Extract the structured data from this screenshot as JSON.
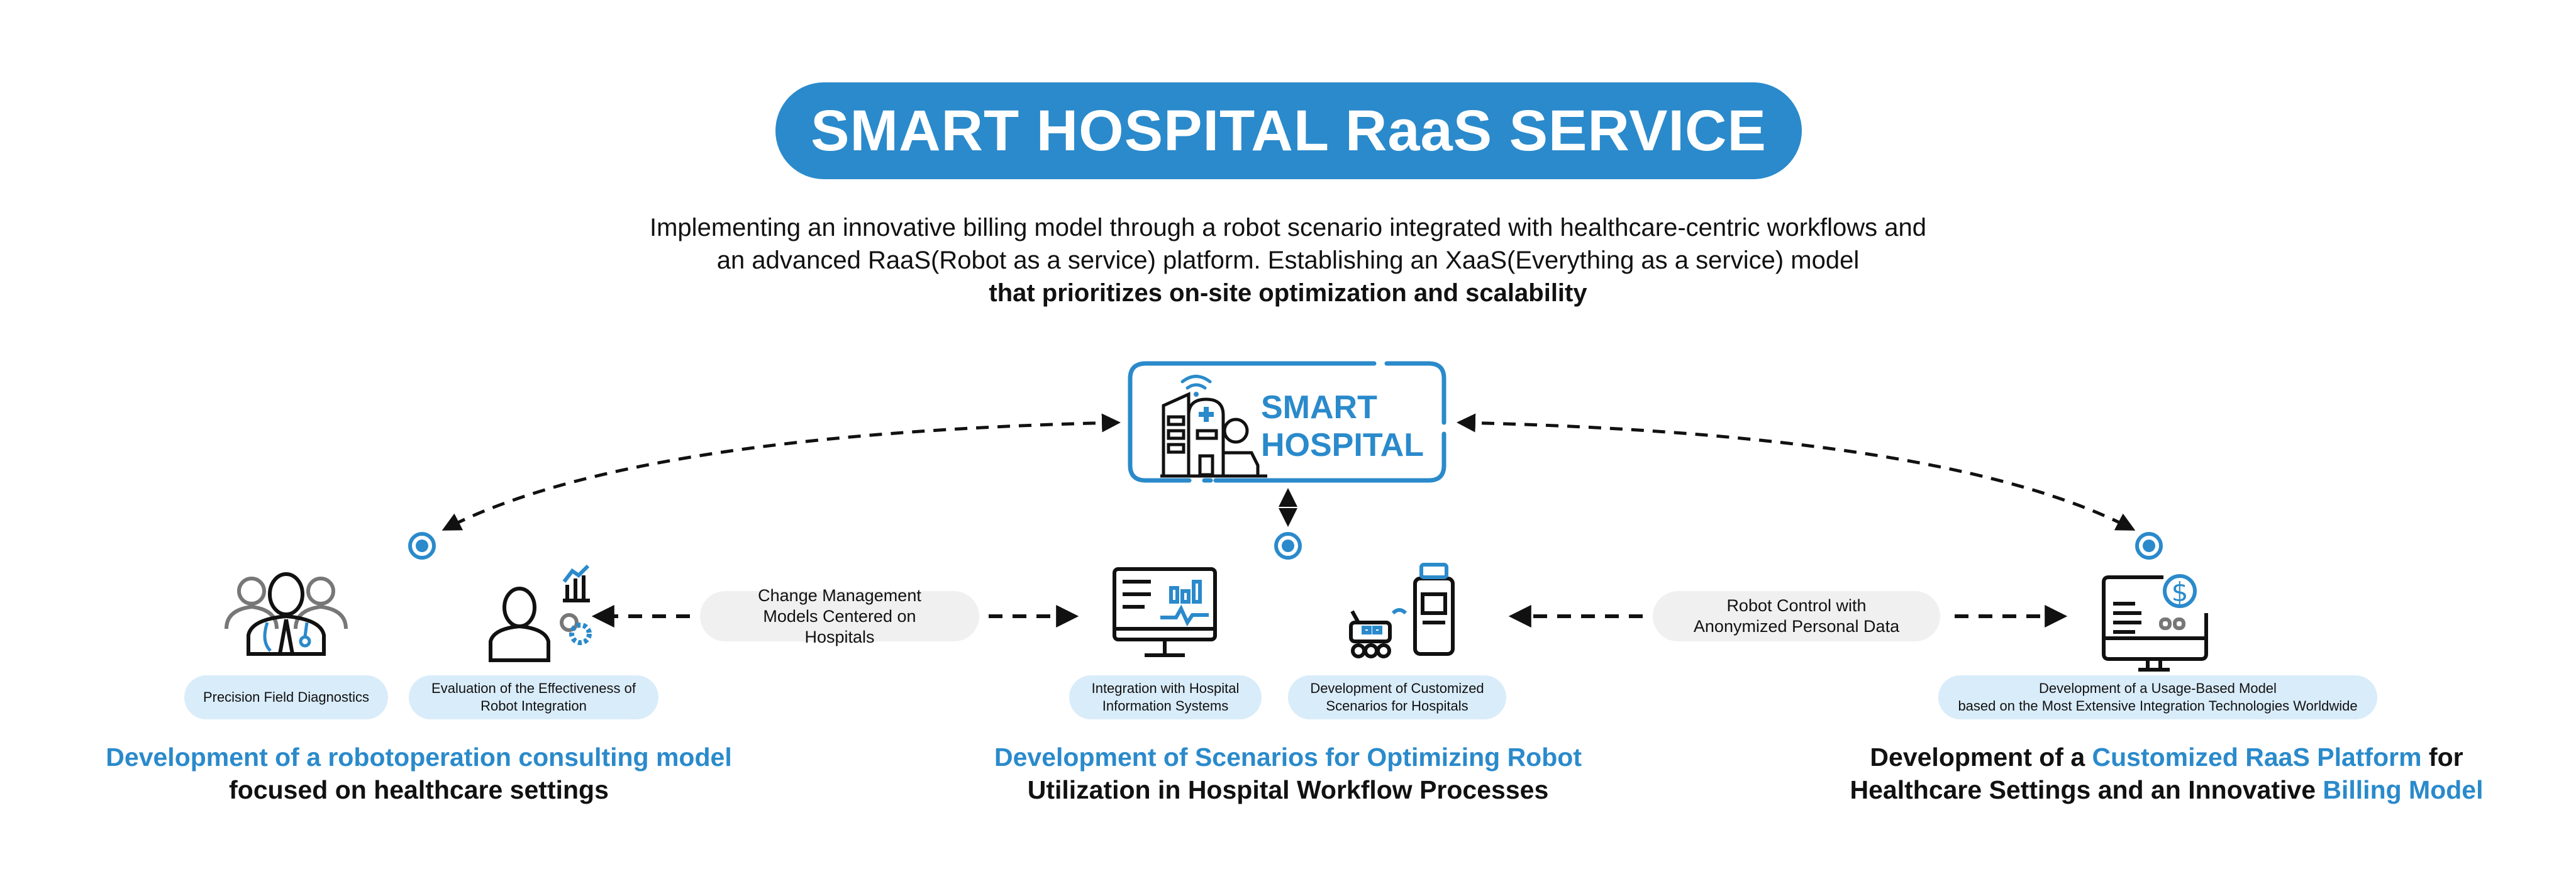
{
  "title": "SMART HOSPITAL RaaS SERVICE",
  "description": {
    "line1": "Implementing an innovative billing model through a robot scenario integrated with healthcare-centric workflows and",
    "line2": "an advanced RaaS(Robot as a service) platform. Establishing an XaaS(Everything as a service) model",
    "line3_bold": "that prioritizes on-site optimization and scalability"
  },
  "hub": {
    "line1": "SMART",
    "line2": "HOSPITAL",
    "icon": "hospital-wifi-icon"
  },
  "connectors": {
    "left": "Change Management Models Centered on Hospitals",
    "right": "Robot Control with Anonymized Personal Data"
  },
  "pills": {
    "precision": "Precision Field Diagnostics",
    "evaluation": "Evaluation of the Effectiveness of Robot Integration",
    "integration": "Integration with Hospital Information Systems",
    "scenarios": "Development of Customized Scenarios for Hospitals",
    "usage_line1": "Development of a Usage-Based Model",
    "usage_line2": "based on the Most Extensive Integration Technologies Worldwide"
  },
  "headings": {
    "left_line1": "Development of a robotoperation consulting model",
    "left_line2": "focused on healthcare settings",
    "center_line1": "Development of Scenarios for Optimizing Robot",
    "center_line2": "Utilization in Hospital Workflow Processes",
    "right_a": "Development of a ",
    "right_b": "Customized RaaS Platform",
    "right_c": " for",
    "right_d": "Healthcare Settings and an Innovative ",
    "right_e": "Billing Model"
  },
  "colors": {
    "accent": "#2a8acb",
    "pill": "#d9ecfa",
    "gray_pill": "#f0f0f0",
    "text": "#111111"
  }
}
